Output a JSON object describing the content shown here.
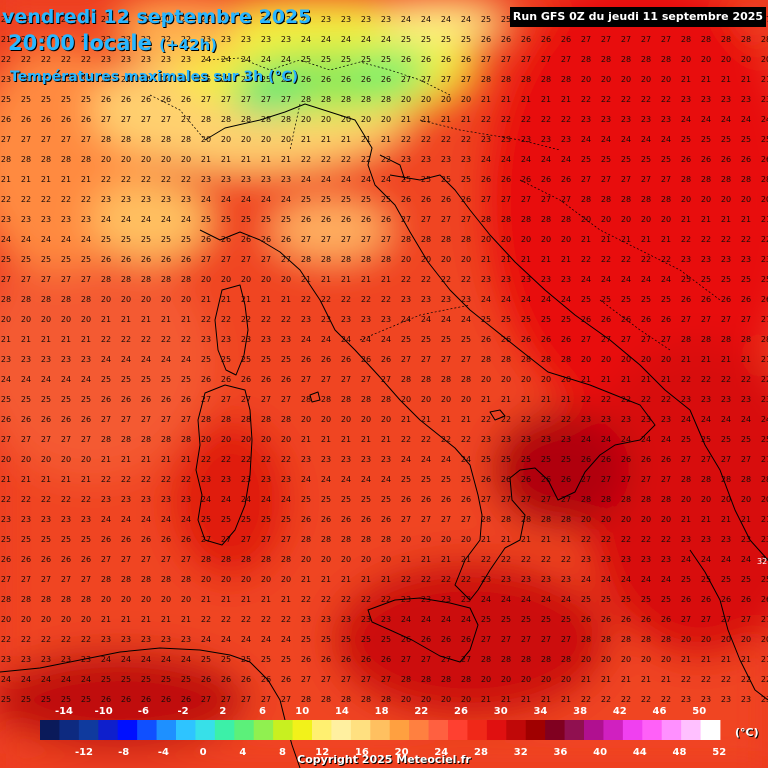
{
  "header": {
    "date_line": "vendredi 12 septembre 2025",
    "time_line": "20:00 locale",
    "lead_time": "(+42h)",
    "variable": "Températures maximales sur 3h (°C)"
  },
  "run_info": "Run GFS 0Z du jeudi 11 septembre 2025",
  "copyright": "Copyright 2025 Meteociel.fr",
  "legend": {
    "unit": "(°C)",
    "top_labels": [
      "-14",
      "-10",
      "-6",
      "-2",
      "2",
      "6",
      "10",
      "14",
      "18",
      "22",
      "26",
      "30",
      "34",
      "38",
      "42",
      "46",
      "50"
    ],
    "bottom_labels": [
      "-12",
      "-8",
      "-4",
      "0",
      "4",
      "8",
      "12",
      "16",
      "20",
      "24",
      "28",
      "32",
      "36",
      "40",
      "44",
      "48",
      "52"
    ],
    "colors": [
      "#0a1a5a",
      "#0d2a80",
      "#0f3a9e",
      "#0e1fcc",
      "#0010ff",
      "#1050ff",
      "#1e90ff",
      "#2ec4ff",
      "#37e0e8",
      "#3cf0a8",
      "#5cf07a",
      "#90f050",
      "#c8f020",
      "#f2f21a",
      "#fff070",
      "#fff0a0",
      "#ffe080",
      "#ffc060",
      "#ffa040",
      "#ff8040",
      "#ff6040",
      "#ff4030",
      "#f02818",
      "#e01010",
      "#c00808",
      "#a00000",
      "#800020",
      "#901050",
      "#b01090",
      "#d020c0",
      "#f040f0",
      "#ff60f8",
      "#ff90ff",
      "#ffc0ff",
      "#ffffff"
    ]
  },
  "map": {
    "grid_values_sample": [
      "20",
      "21",
      "22",
      "23",
      "24",
      "25",
      "26",
      "27",
      "28"
    ],
    "edge_value": "32"
  }
}
